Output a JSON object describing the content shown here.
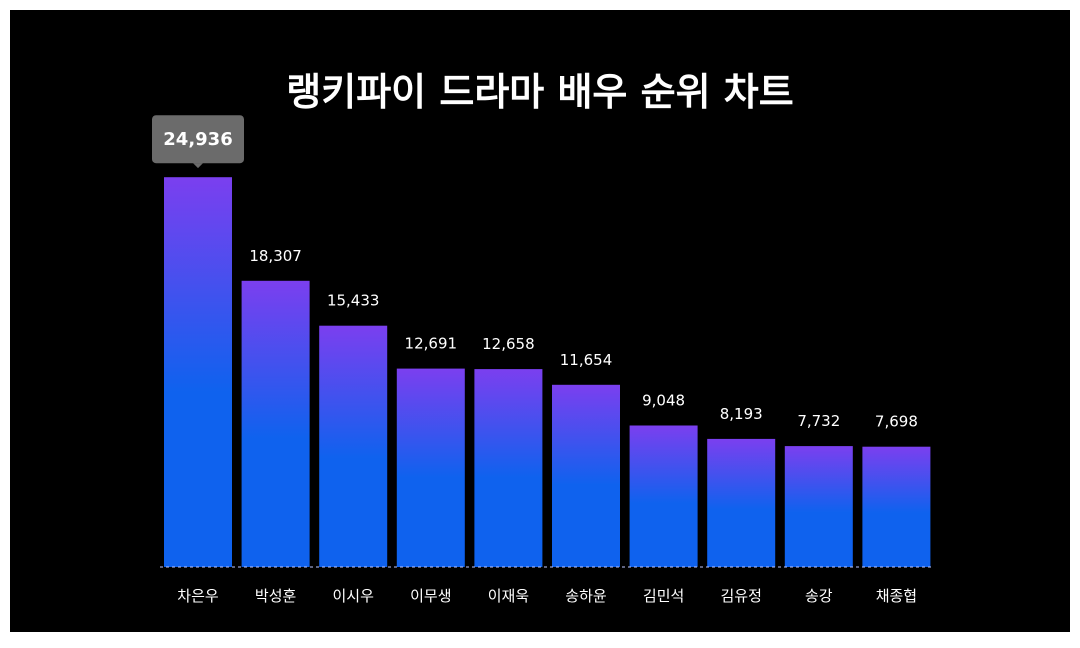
{
  "chart_data": {
    "type": "bar",
    "title": "랭키파이 드라마 배우 순위 차트",
    "categories": [
      "차은우",
      "박성훈",
      "이시우",
      "이무생",
      "이재욱",
      "송하윤",
      "김민석",
      "김유정",
      "송강",
      "채종협"
    ],
    "values": [
      24936,
      18307,
      15433,
      12691,
      12658,
      11654,
      9048,
      8193,
      7732,
      7698
    ],
    "value_labels": [
      "24,936",
      "18,307",
      "15,433",
      "12,691",
      "12,658",
      "11,654",
      "9,048",
      "8,193",
      "7,732",
      "7,698"
    ],
    "highlighted_index": 0,
    "ylim": [
      0,
      30000
    ],
    "grid": false,
    "legend": "none"
  },
  "colors": {
    "background": "#000000",
    "bar_top": "#7b3fef",
    "bar_bottom": "#0f62ee",
    "tooltip": "#6b6b6b",
    "baseline": "#bfc7ff",
    "text": "#ffffff"
  }
}
